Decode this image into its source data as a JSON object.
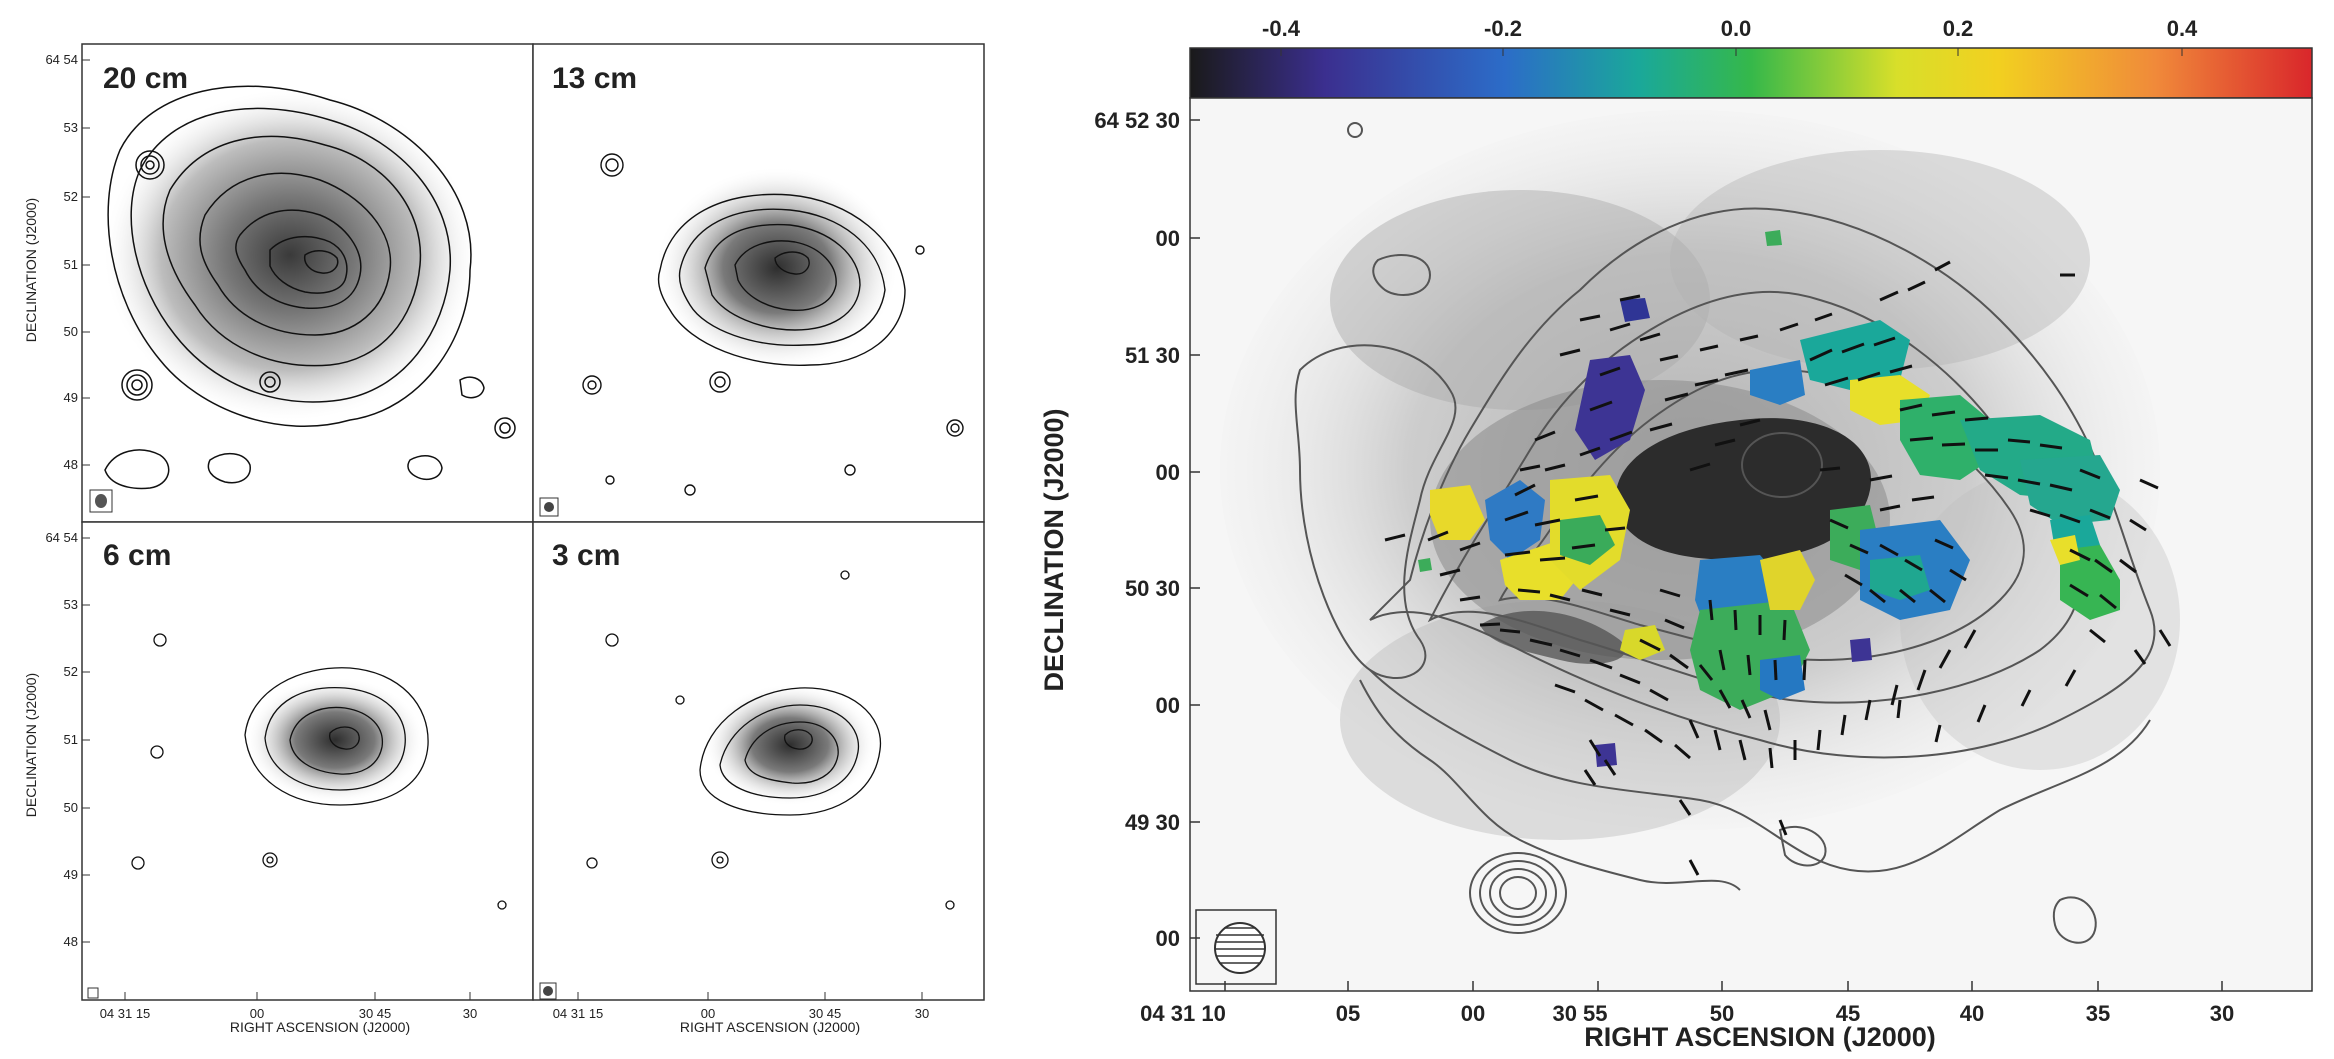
{
  "figure": {
    "colors": {
      "frame": "#333333",
      "contour": "#111111",
      "contour_gray": "#555555",
      "background": "#ffffff",
      "vector": "#111111"
    },
    "panels_left": [
      {
        "label": "20 cm"
      },
      {
        "label": "13 cm"
      },
      {
        "label": "6 cm"
      },
      {
        "label": "3 cm"
      }
    ],
    "left_axes": {
      "xlabel": "RIGHT ASCENSION (J2000)",
      "ylabel": "DECLINATION (J2000)",
      "xticks": [
        "04 31 15",
        "00",
        "30 45",
        "30"
      ],
      "yticks_top": [
        "64 54",
        "53",
        "52",
        "51",
        "50",
        "49",
        "48"
      ],
      "yticks_bottom": [
        "64 54",
        "53",
        "52",
        "51",
        "50",
        "49",
        "48"
      ]
    },
    "right_map": {
      "xlabel": "RIGHT ASCENSION (J2000)",
      "ylabel": "DECLINATION (J2000)",
      "xticks": [
        "04 31 10",
        "05",
        "00",
        "30 55",
        "50",
        "45",
        "40",
        "35",
        "30"
      ],
      "yticks": [
        "64 52 30",
        "00",
        "51 30",
        "00",
        "50 30",
        "00",
        "49 30",
        "00"
      ],
      "colorbar": {
        "ticks": [
          "-0.4",
          "-0.2",
          "0.0",
          "0.2",
          "0.4"
        ],
        "stops": [
          "#1a1a1a",
          "#3b2f8f",
          "#2c6cc8",
          "#1aa89a",
          "#35b84a",
          "#d8df2a",
          "#f2d020",
          "#f08a3a",
          "#d9262b"
        ]
      }
    }
  }
}
